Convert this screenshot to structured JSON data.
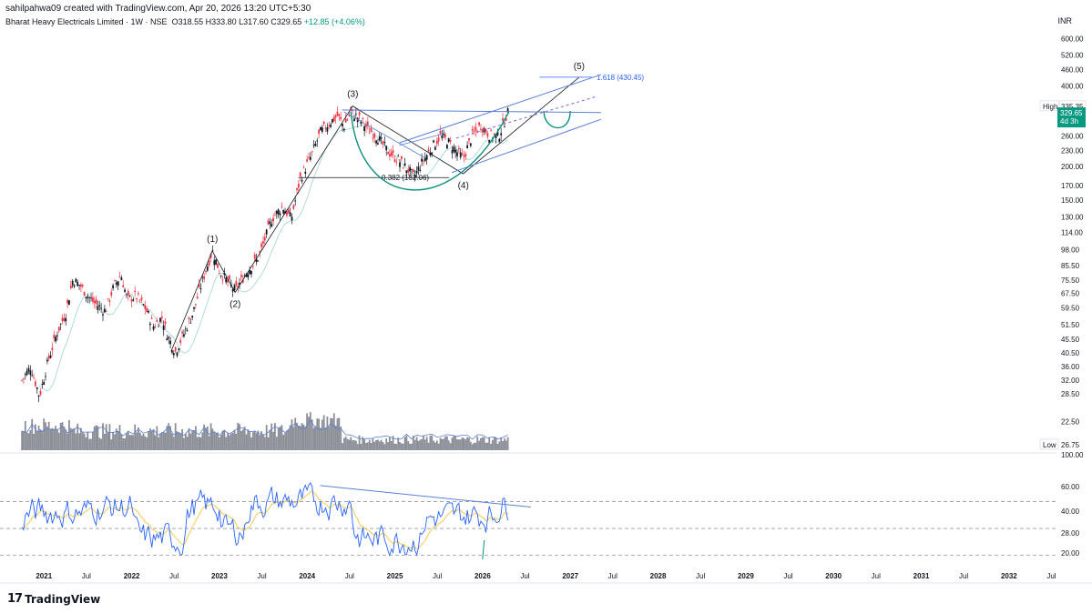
{
  "header": {
    "author_line": "sahilpahwa09 created with TradingView.com, Apr 20, 2026 13:20 UTC+5:30",
    "symbol": "Bharat Heavy Electricals Limited · 1W · NSE",
    "open": "O318.55",
    "high": "H333.80",
    "low": "L317.60",
    "close": "C329.65",
    "change": "+12.85 (+4.06%)",
    "currency": "INR"
  },
  "colors": {
    "up": "#089981",
    "down": "#f23645",
    "candle": "#131722",
    "volume": "#787b86",
    "trendline": "#5b7fd6",
    "wave": "#131722",
    "arc": "#0b8f7f",
    "rsi": "#2962ff",
    "rsi_ma": "#f5c542",
    "fib": "#2962ff"
  },
  "chart_data": {
    "type": "candlestick",
    "timeframe": "1W",
    "y_scale": "log",
    "ylim": [
      18,
      640
    ],
    "y_ticks": [
      "600.00",
      "520.00",
      "460.00",
      "400.00",
      "335.35",
      "300.00",
      "260.00",
      "230.00",
      "200.00",
      "170.00",
      "150.00",
      "130.00",
      "114.00",
      "98.00",
      "85.50",
      "75.50",
      "67.50",
      "59.50",
      "51.50",
      "45.50",
      "40.50",
      "36.00",
      "32.00",
      "28.50",
      "26.75",
      "22.50"
    ],
    "x_ticks": [
      "2021",
      "Jul",
      "2022",
      "Jul",
      "2023",
      "Jul",
      "2024",
      "Jul",
      "2025",
      "Jul",
      "2026",
      "Jul",
      "2027",
      "Jul",
      "2028",
      "Jul",
      "2029",
      "Jul",
      "2030",
      "Jul",
      "2031",
      "Jul",
      "2032",
      "Jul"
    ],
    "price_labels": {
      "high_label": "High",
      "high_value": "335.35",
      "last_value": "329.65",
      "countdown": "4d 3h",
      "low_label": "Low",
      "low_value": "26.75"
    },
    "price_path": [
      {
        "t": 2020.75,
        "p": 32
      },
      {
        "t": 2020.85,
        "p": 36
      },
      {
        "t": 2020.95,
        "p": 28
      },
      {
        "t": 2021.05,
        "p": 38
      },
      {
        "t": 2021.15,
        "p": 48
      },
      {
        "t": 2021.25,
        "p": 57
      },
      {
        "t": 2021.33,
        "p": 76
      },
      {
        "t": 2021.42,
        "p": 72
      },
      {
        "t": 2021.5,
        "p": 66
      },
      {
        "t": 2021.58,
        "p": 62
      },
      {
        "t": 2021.7,
        "p": 58
      },
      {
        "t": 2021.8,
        "p": 72
      },
      {
        "t": 2021.88,
        "p": 79
      },
      {
        "t": 2021.95,
        "p": 64
      },
      {
        "t": 2022.05,
        "p": 66
      },
      {
        "t": 2022.15,
        "p": 60
      },
      {
        "t": 2022.25,
        "p": 51
      },
      {
        "t": 2022.35,
        "p": 55
      },
      {
        "t": 2022.42,
        "p": 46
      },
      {
        "t": 2022.5,
        "p": 41
      },
      {
        "t": 2022.6,
        "p": 48
      },
      {
        "t": 2022.7,
        "p": 57
      },
      {
        "t": 2022.8,
        "p": 74
      },
      {
        "t": 2022.92,
        "p": 97
      },
      {
        "t": 2023.0,
        "p": 82
      },
      {
        "t": 2023.1,
        "p": 74
      },
      {
        "t": 2023.18,
        "p": 69
      },
      {
        "t": 2023.3,
        "p": 80
      },
      {
        "t": 2023.45,
        "p": 92
      },
      {
        "t": 2023.6,
        "p": 128
      },
      {
        "t": 2023.72,
        "p": 142
      },
      {
        "t": 2023.82,
        "p": 128
      },
      {
        "t": 2023.92,
        "p": 180
      },
      {
        "t": 2024.05,
        "p": 220
      },
      {
        "t": 2024.15,
        "p": 268
      },
      {
        "t": 2024.25,
        "p": 290
      },
      {
        "t": 2024.35,
        "p": 310
      },
      {
        "t": 2024.42,
        "p": 282
      },
      {
        "t": 2024.5,
        "p": 318
      },
      {
        "t": 2024.58,
        "p": 305
      },
      {
        "t": 2024.7,
        "p": 275
      },
      {
        "t": 2024.8,
        "p": 258
      },
      {
        "t": 2024.92,
        "p": 228
      },
      {
        "t": 2025.05,
        "p": 210
      },
      {
        "t": 2025.15,
        "p": 195
      },
      {
        "t": 2025.22,
        "p": 183
      },
      {
        "t": 2025.32,
        "p": 210
      },
      {
        "t": 2025.42,
        "p": 235
      },
      {
        "t": 2025.52,
        "p": 260
      },
      {
        "t": 2025.6,
        "p": 250
      },
      {
        "t": 2025.7,
        "p": 228
      },
      {
        "t": 2025.78,
        "p": 215
      },
      {
        "t": 2025.88,
        "p": 260
      },
      {
        "t": 2025.98,
        "p": 285
      },
      {
        "t": 2026.08,
        "p": 262
      },
      {
        "t": 2026.18,
        "p": 258
      },
      {
        "t": 2026.25,
        "p": 295
      },
      {
        "t": 2026.3,
        "p": 329.65
      }
    ],
    "annotations": {
      "wave_labels": [
        "(1)",
        "(2)",
        "(3)",
        "(4)",
        "(5)"
      ],
      "fib_382": "0.382 (182.06)",
      "fib_1618": "1.618 (430.45)"
    },
    "rsi": {
      "y_ticks": [
        "100.00",
        "60.00",
        "40.00",
        "28.00",
        "20.00"
      ],
      "upper_band": 70,
      "middle_band": 50,
      "lower_band": 30
    }
  }
}
